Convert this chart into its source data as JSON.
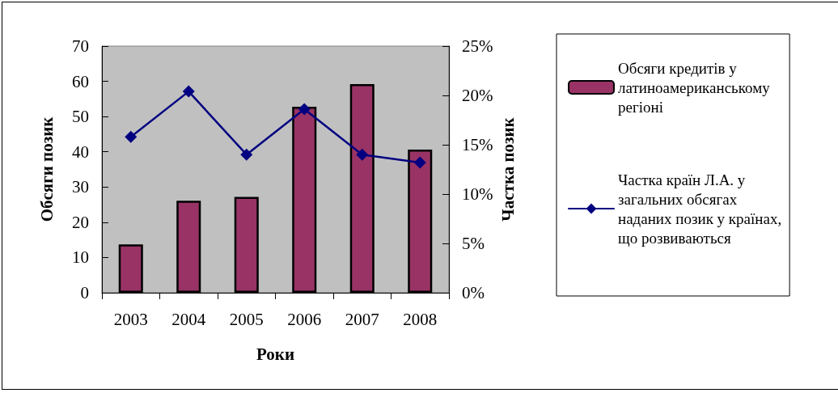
{
  "chart_data": {
    "type": "bar",
    "xlabel": "Роки",
    "ylabel": "Обсяги позик",
    "y2label": "Частка позик",
    "categories": [
      "2003",
      "2004",
      "2005",
      "2006",
      "2007",
      "2008"
    ],
    "series": [
      {
        "name": "Обсяги кредитів у латиноамериканському регіоні",
        "color": "#993366",
        "values": [
          13.7,
          26.1,
          27.2,
          52.8,
          59.2,
          40.6
        ]
      },
      {
        "name": "Частка країн Л.А. у загальних обсягах наданих позик у країнах, що розвиваються",
        "type": "line",
        "axis": "y2",
        "color": "#000080",
        "marker": "diamond",
        "line_style": "solid",
        "values": [
          15.8,
          20.4,
          14.0,
          18.6,
          14.0,
          13.2
        ]
      }
    ],
    "ylim": [
      0,
      70
    ],
    "yticks": [
      0,
      10,
      20,
      30,
      40,
      50,
      60,
      70
    ],
    "y2lim": [
      0,
      25
    ],
    "y2ticks": [
      {
        "value": 0,
        "label": "0%"
      },
      {
        "value": 5,
        "label": "5%"
      },
      {
        "value": 10,
        "label": "10%"
      },
      {
        "value": 15,
        "label": "15%"
      },
      {
        "value": 20,
        "label": "20%"
      },
      {
        "value": 25,
        "label": "25%"
      }
    ],
    "grid": false,
    "legend": "right"
  }
}
